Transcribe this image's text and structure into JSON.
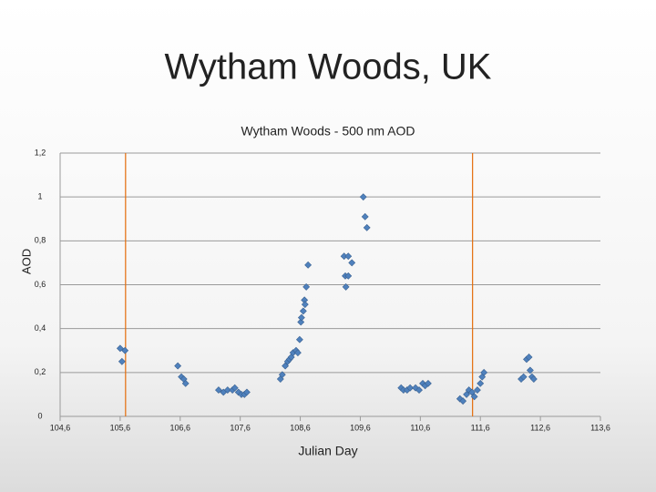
{
  "slide_title": "Wytham Woods, UK",
  "chart_data": {
    "type": "scatter",
    "title": "Wytham Woods - 500 nm AOD",
    "x_label": "Julian Day",
    "y_label": "AOD",
    "x": [
      105.6,
      105.68,
      105.63,
      106.56,
      106.62,
      106.66,
      106.69,
      107.24,
      107.32,
      107.39,
      107.47,
      107.51,
      107.57,
      107.62,
      107.67,
      107.71,
      108.27,
      108.3,
      108.35,
      108.39,
      108.42,
      108.45,
      108.48,
      108.53,
      108.56,
      108.59,
      108.61,
      108.62,
      108.65,
      108.67,
      108.68,
      108.7,
      108.73,
      109.33,
      109.4,
      109.46,
      109.35,
      109.4,
      109.36,
      109.65,
      109.68,
      109.71,
      110.28,
      110.32,
      110.38,
      110.43,
      110.52,
      110.58,
      110.64,
      110.68,
      110.73,
      111.26,
      111.31,
      111.37,
      111.41,
      111.46,
      111.5,
      111.55,
      111.6,
      111.63,
      111.66,
      112.28,
      112.32,
      112.37,
      112.41,
      112.43,
      112.46,
      112.49
    ],
    "series": [
      {
        "name": "AOD",
        "color": "#4f81bd",
        "values": [
          0.31,
          0.3,
          0.25,
          0.23,
          0.18,
          0.17,
          0.15,
          0.12,
          0.11,
          0.12,
          0.12,
          0.13,
          0.11,
          0.1,
          0.1,
          0.11,
          0.17,
          0.19,
          0.23,
          0.25,
          0.26,
          0.27,
          0.29,
          0.3,
          0.29,
          0.35,
          0.43,
          0.45,
          0.48,
          0.53,
          0.51,
          0.59,
          0.69,
          0.73,
          0.73,
          0.7,
          0.64,
          0.64,
          0.59,
          1.0,
          0.91,
          0.86,
          0.13,
          0.12,
          0.12,
          0.13,
          0.13,
          0.12,
          0.15,
          0.14,
          0.15,
          0.08,
          0.07,
          0.1,
          0.12,
          0.11,
          0.09,
          0.12,
          0.15,
          0.18,
          0.2,
          0.17,
          0.18,
          0.26,
          0.27,
          0.21,
          0.18,
          0.17
        ]
      }
    ],
    "vlines": [
      105.69,
      111.47
    ],
    "vline_color": "#e46c0a",
    "xlim": [
      104.6,
      113.6
    ],
    "xticks": [
      {
        "value": 104.6,
        "label": "104,6"
      },
      {
        "value": 105.6,
        "label": "105,6"
      },
      {
        "value": 106.6,
        "label": "106,6"
      },
      {
        "value": 107.6,
        "label": "107,6"
      },
      {
        "value": 108.6,
        "label": "108,6"
      },
      {
        "value": 109.6,
        "label": "109,6"
      },
      {
        "value": 110.6,
        "label": "110,6"
      },
      {
        "value": 111.6,
        "label": "111,6"
      },
      {
        "value": 112.6,
        "label": "112,6"
      },
      {
        "value": 113.6,
        "label": "113,6"
      }
    ],
    "ylim": [
      0,
      1.2
    ],
    "yticks": [
      0,
      {
        "value": 0.2,
        "label": "0,2"
      },
      {
        "value": 0.4,
        "label": "0,4"
      },
      {
        "value": 0.6,
        "label": "0,6"
      },
      {
        "value": 0.8,
        "label": "0,8"
      },
      {
        "value": 1,
        "label": "1"
      },
      {
        "value": 1.2,
        "label": "1,2"
      }
    ],
    "grid": true
  }
}
